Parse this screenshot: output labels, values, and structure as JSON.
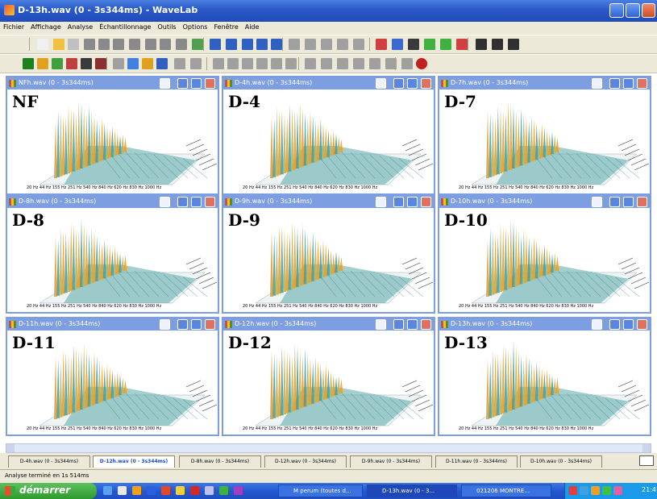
{
  "window": {
    "title": "D-13h.wav (0 - 3s344ms) - WaveLab"
  },
  "menu": [
    "Fichier",
    "Affichage",
    "Analyse",
    "Échantillonnage",
    "Outils",
    "Options",
    "Fenêtre",
    "Aide"
  ],
  "children": [
    {
      "title": "NFh.wav (0 - 3s344ms)",
      "label": "NF"
    },
    {
      "title": "D-4h.wav (0 - 3s344ms)",
      "label": "D-4"
    },
    {
      "title": "D-7h.wav (0 - 3s344ms)",
      "label": "D-7"
    },
    {
      "title": "D-8h.wav (0 - 3s344ms)",
      "label": "D-8"
    },
    {
      "title": "D-9h.wav (0 - 3s344ms)",
      "label": "D-9"
    },
    {
      "title": "D-10h.wav (0 - 3s344ms)",
      "label": "D-10"
    },
    {
      "title": "D-11h.wav (0 - 3s344ms)",
      "label": "D-11"
    },
    {
      "title": "D-12h.wav (0 - 3s344ms)",
      "label": "D-12"
    },
    {
      "title": "D-13h.wav (0 - 3s344ms)",
      "label": "D-13"
    }
  ],
  "plot_axis": "20 Hz    44 Hz 155 Hz 251 Hz 540 Hz 840 Hz 620 Hz 830 Hz 1000 Hz",
  "tabs": [
    {
      "label": "D-4h.wav (0 - 3s344ms)",
      "active": false
    },
    {
      "label": "D-12h.wav (0 - 3s344ms)",
      "active": true
    },
    {
      "label": "D-8h.wav (0 - 3s344ms)",
      "active": false
    },
    {
      "label": "D-12h.wav (0 - 3s344ms)",
      "active": false
    },
    {
      "label": "D-9h.wav (0 - 3s344ms)",
      "active": false
    },
    {
      "label": "D-11h.wav (0 - 3s344ms)",
      "active": false
    },
    {
      "label": "D-10h.wav (0 - 3s344ms)",
      "active": false
    }
  ],
  "status": "Analyse terminé en 1s 514ms",
  "taskbar": {
    "start": "démarrer",
    "items": [
      "M perum (toutes d...",
      "D-13h.wav (0 - 3...",
      "021206 MONTRE..."
    ],
    "clock": "21:4"
  },
  "colors": {
    "title_bar": "#2a58c8",
    "child_frame": "#7d9ee0",
    "start_button": "#3fa83f",
    "peak_orange": "#e8a030",
    "surface_teal": "#3a9a9a"
  },
  "icons": {
    "app": "wavelab-icon",
    "minimize": "minimize-icon",
    "maximize": "maximize-icon",
    "close": "close-icon"
  }
}
